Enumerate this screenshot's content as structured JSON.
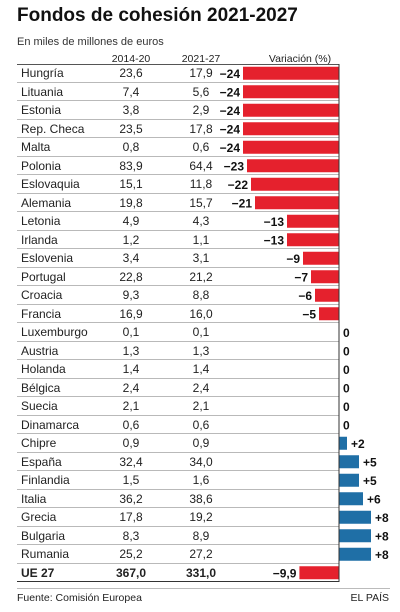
{
  "title": "Fondos de cohesión 2021-2027",
  "subtitle": "En miles de millones de euros",
  "columns": {
    "c1": "2014-20",
    "c2": "2021-27",
    "c3": "Variación (%)"
  },
  "footer": {
    "source": "Fuente: Comisión Europea",
    "brand": "EL PAÍS"
  },
  "colors": {
    "negative": "#e5212d",
    "positive": "#1f6fa6"
  },
  "chart_data": {
    "type": "bar",
    "orientation": "horizontal",
    "title": "Fondos de cohesión 2021-2027",
    "subtitle": "En miles de millones de euros",
    "rows": [
      {
        "country": "Hungría",
        "v2014": "23,6",
        "v2021": "17,9",
        "var": -24,
        "label": "−24"
      },
      {
        "country": "Lituania",
        "v2014": "7,4",
        "v2021": "5,6",
        "var": -24,
        "label": "−24"
      },
      {
        "country": "Estonia",
        "v2014": "3,8",
        "v2021": "2,9",
        "var": -24,
        "label": "−24"
      },
      {
        "country": "Rep. Checa",
        "v2014": "23,5",
        "v2021": "17,8",
        "var": -24,
        "label": "−24"
      },
      {
        "country": "Malta",
        "v2014": "0,8",
        "v2021": "0,6",
        "var": -24,
        "label": "−24"
      },
      {
        "country": "Polonia",
        "v2014": "83,9",
        "v2021": "64,4",
        "var": -23,
        "label": "−23"
      },
      {
        "country": "Eslovaquia",
        "v2014": "15,1",
        "v2021": "11,8",
        "var": -22,
        "label": "−22"
      },
      {
        "country": "Alemania",
        "v2014": "19,8",
        "v2021": "15,7",
        "var": -21,
        "label": "−21"
      },
      {
        "country": "Letonia",
        "v2014": "4,9",
        "v2021": "4,3",
        "var": -13,
        "label": "−13"
      },
      {
        "country": "Irlanda",
        "v2014": "1,2",
        "v2021": "1,1",
        "var": -13,
        "label": "−13"
      },
      {
        "country": "Eslovenia",
        "v2014": "3,4",
        "v2021": "3,1",
        "var": -9,
        "label": "−9"
      },
      {
        "country": "Portugal",
        "v2014": "22,8",
        "v2021": "21,2",
        "var": -7,
        "label": "−7"
      },
      {
        "country": "Croacia",
        "v2014": "9,3",
        "v2021": "8,8",
        "var": -6,
        "label": "−6"
      },
      {
        "country": "Francia",
        "v2014": "16,9",
        "v2021": "16,0",
        "var": -5,
        "label": "−5"
      },
      {
        "country": "Luxemburgo",
        "v2014": "0,1",
        "v2021": "0,1",
        "var": 0,
        "label": "0"
      },
      {
        "country": "Austria",
        "v2014": "1,3",
        "v2021": "1,3",
        "var": 0,
        "label": "0"
      },
      {
        "country": "Holanda",
        "v2014": "1,4",
        "v2021": "1,4",
        "var": 0,
        "label": "0"
      },
      {
        "country": "Bélgica",
        "v2014": "2,4",
        "v2021": "2,4",
        "var": 0,
        "label": "0"
      },
      {
        "country": "Suecia",
        "v2014": "2,1",
        "v2021": "2,1",
        "var": 0,
        "label": "0"
      },
      {
        "country": "Dinamarca",
        "v2014": "0,6",
        "v2021": "0,6",
        "var": 0,
        "label": "0"
      },
      {
        "country": "Chipre",
        "v2014": "0,9",
        "v2021": "0,9",
        "var": 2,
        "label": "+2"
      },
      {
        "country": "España",
        "v2014": "32,4",
        "v2021": "34,0",
        "var": 5,
        "label": "+5"
      },
      {
        "country": "Finlandia",
        "v2014": "1,5",
        "v2021": "1,6",
        "var": 5,
        "label": "+5"
      },
      {
        "country": "Italia",
        "v2014": "36,2",
        "v2021": "38,6",
        "var": 6,
        "label": "+6"
      },
      {
        "country": "Grecia",
        "v2014": "17,8",
        "v2021": "19,2",
        "var": 8,
        "label": "+8"
      },
      {
        "country": "Bulgaria",
        "v2014": "8,3",
        "v2021": "8,9",
        "var": 8,
        "label": "+8"
      },
      {
        "country": "Rumania",
        "v2014": "25,2",
        "v2021": "27,2",
        "var": 8,
        "label": "+8"
      }
    ],
    "total": {
      "country": "UE 27",
      "v2014": "367,0",
      "v2021": "331,0",
      "var": -9.9,
      "label": "−9,9"
    }
  }
}
